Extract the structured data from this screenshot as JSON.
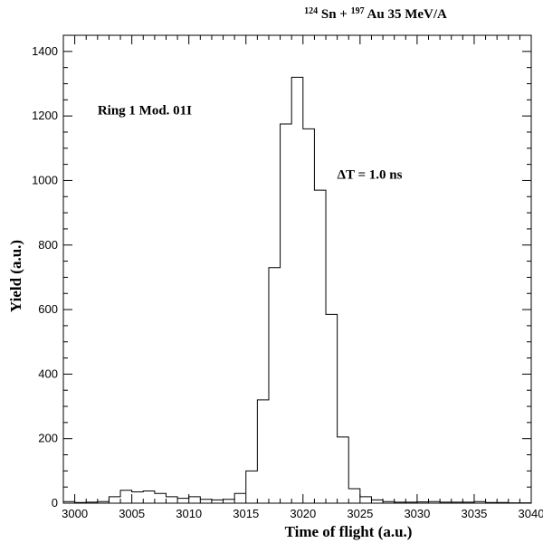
{
  "chart_data": {
    "type": "histogram",
    "title": {
      "part1_sup": "124",
      "part1": "Sn + ",
      "part2_sup": "197",
      "part2": "Au 35 MeV/A"
    },
    "xlabel": "Time of flight (a.u.)",
    "ylabel": "Yield (a.u.)",
    "xlim": [
      2999,
      3040
    ],
    "ylim": [
      0,
      1450
    ],
    "xticks": [
      3000,
      3005,
      3010,
      3015,
      3020,
      3025,
      3030,
      3035,
      3040
    ],
    "yticks": [
      0,
      200,
      400,
      600,
      800,
      1000,
      1200,
      1400
    ],
    "bin_width": 1,
    "bins_start": 2999,
    "values": [
      5,
      2,
      3,
      5,
      20,
      40,
      35,
      38,
      30,
      20,
      15,
      20,
      12,
      10,
      12,
      30,
      100,
      320,
      730,
      1175,
      1320,
      1160,
      970,
      585,
      205,
      45,
      20,
      10,
      5,
      3,
      3,
      4,
      5,
      3,
      3,
      3,
      5,
      2,
      2,
      1,
      1
    ],
    "annotations": [
      {
        "text": "Ring 1 Mod. 01I",
        "x": 3002,
        "y": 1205
      },
      {
        "text": "ΔT = 1.0 ns",
        "x": 3023,
        "y": 1005
      }
    ],
    "grid": false,
    "legend": "none"
  }
}
